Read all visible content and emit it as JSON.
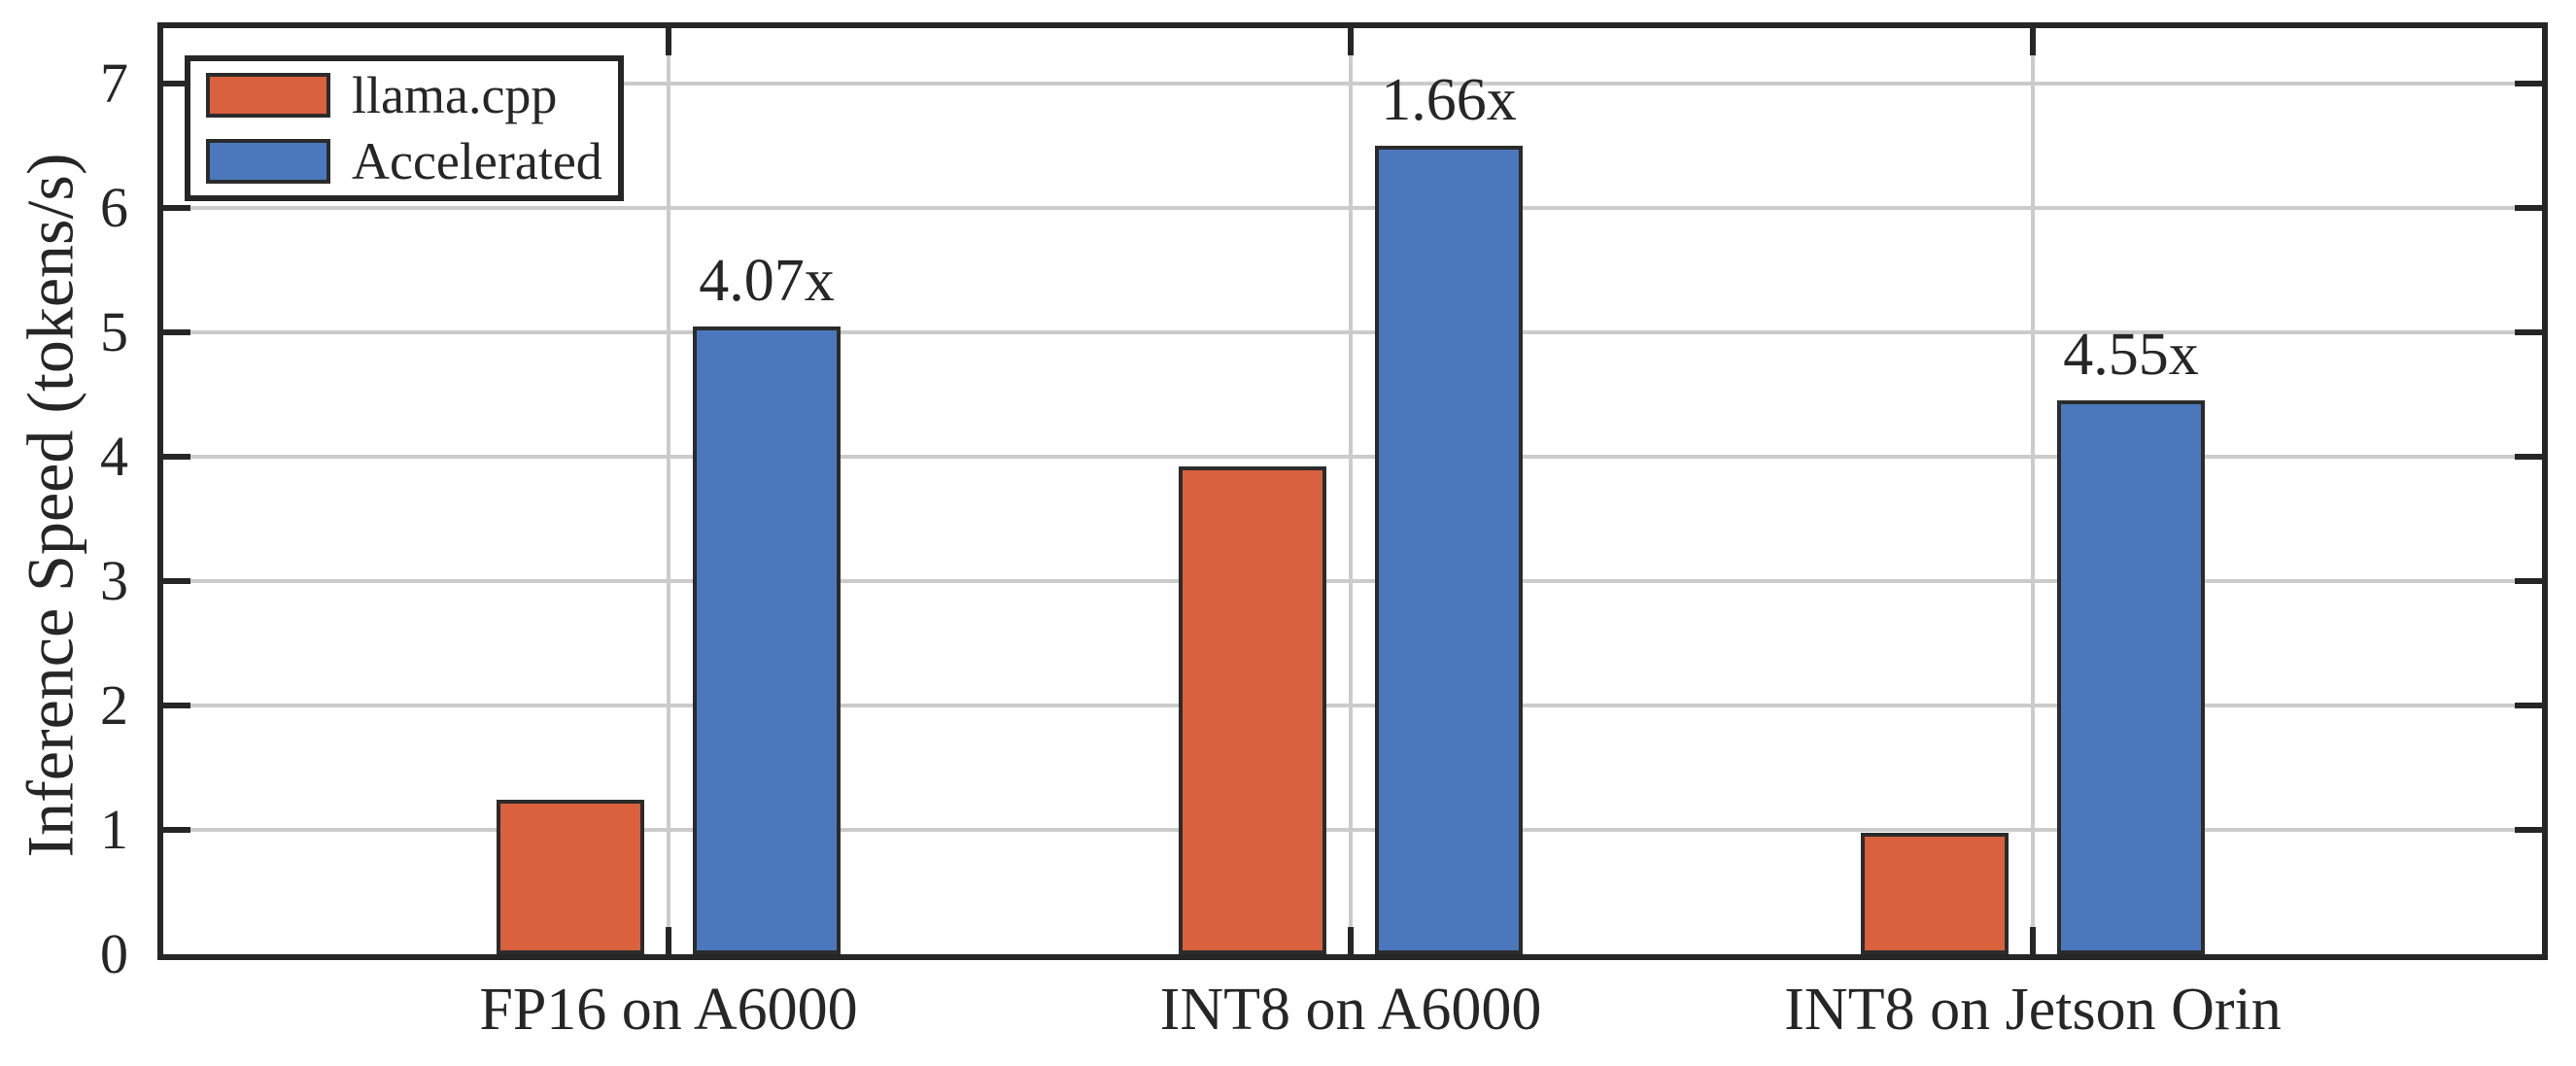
{
  "chart_data": {
    "type": "bar",
    "title": "",
    "ylabel": "Inference Speed (tokens/s)",
    "xlabel": "",
    "categories": [
      "FP16 on A6000",
      "INT8 on A6000",
      "INT8 on Jetson Orin"
    ],
    "series": [
      {
        "name": "llama.cpp",
        "color": "#D9613E",
        "values": [
          1.24,
          3.92,
          0.98
        ]
      },
      {
        "name": "Accelerated",
        "color": "#4B78BC",
        "values": [
          5.05,
          6.5,
          4.45
        ]
      }
    ],
    "speedup_labels": [
      "4.07x",
      "1.66x",
      "4.55x"
    ],
    "y_axis": {
      "min": 0,
      "max": 7.45,
      "tick_labels": [
        "0",
        "1",
        "2",
        "3",
        "4",
        "5",
        "6",
        "7"
      ]
    },
    "grid": {
      "horizontal": true,
      "vertical_at_group_centers": true
    },
    "legend_position": "top-left"
  },
  "style": {
    "background": "#FFFFFF",
    "axes_color": "#262626",
    "bar_edge_color": "#2B2B2B",
    "grid_color": "#CBCBCB",
    "text_color": "#262626"
  }
}
